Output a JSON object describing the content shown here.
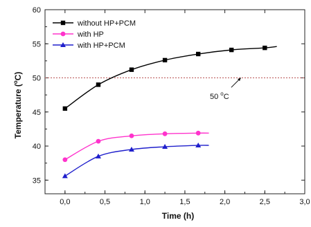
{
  "chart_data": {
    "type": "line",
    "xlabel": "Time (h)",
    "ylabel_main": "Temperature (",
    "ylabel_sup": "o",
    "ylabel_tail": "C)",
    "xlim": [
      -0.25,
      3.0
    ],
    "ylim": [
      33,
      60
    ],
    "x_ticks": [
      0.0,
      0.5,
      1.0,
      1.5,
      2.0,
      2.5,
      3.0
    ],
    "x_tick_labels": [
      "0,0",
      "0,5",
      "1,0",
      "1,5",
      "2,0",
      "2,5",
      "3,0"
    ],
    "y_ticks": [
      35,
      40,
      45,
      50,
      55,
      60
    ],
    "y_tick_labels": [
      "35",
      "40",
      "45",
      "50",
      "55",
      "60"
    ],
    "grid": false,
    "legend_position": "top-left",
    "series": [
      {
        "name": "without HP+PCM",
        "color": "#000000",
        "marker": "square",
        "x": [
          0.0,
          0.417,
          0.833,
          1.25,
          1.667,
          2.083,
          2.5
        ],
        "y": [
          45.5,
          49.0,
          51.2,
          52.6,
          53.5,
          54.1,
          54.4
        ],
        "curve_end": {
          "x": 2.65,
          "y": 54.6
        }
      },
      {
        "name": "with HP",
        "color": "#ff33cc",
        "marker": "circle",
        "x": [
          0.0,
          0.417,
          0.833,
          1.25,
          1.667
        ],
        "y": [
          38.0,
          40.7,
          41.5,
          41.8,
          41.9
        ],
        "curve_end": {
          "x": 1.8,
          "y": 41.9
        }
      },
      {
        "name": "with HP+PCM",
        "color": "#1f1fcc",
        "marker": "triangle",
        "x": [
          0.0,
          0.417,
          0.833,
          1.25,
          1.667
        ],
        "y": [
          35.6,
          38.5,
          39.5,
          39.9,
          40.1
        ],
        "curve_end": {
          "x": 1.8,
          "y": 40.1
        }
      }
    ],
    "reference_line": {
      "y": 50,
      "color": "#b85050"
    },
    "annotation": {
      "text_main": "50 ",
      "text_sup": "o",
      "text_tail": "C",
      "arrow_from": {
        "x": 2.08,
        "y": 48.6
      },
      "arrow_to": {
        "x": 2.2,
        "y": 50.0
      }
    }
  }
}
